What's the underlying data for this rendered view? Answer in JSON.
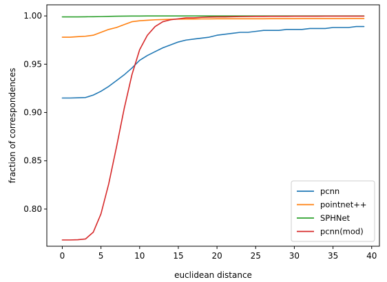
{
  "chart_data": {
    "type": "line",
    "title": "",
    "xlabel": "euclidean distance",
    "ylabel": "fraction of correspondences",
    "xlim": [
      -2,
      41
    ],
    "ylim": [
      0.7615,
      1.0115
    ],
    "xticks": [
      0,
      5,
      10,
      15,
      20,
      25,
      30,
      35,
      40
    ],
    "yticks": [
      0.8,
      0.85,
      0.9,
      0.95,
      1.0
    ],
    "grid": false,
    "legend_position": "lower right",
    "x": [
      0,
      1,
      2,
      3,
      4,
      5,
      6,
      7,
      8,
      9,
      10,
      11,
      12,
      13,
      14,
      15,
      16,
      17,
      18,
      19,
      20,
      21,
      22,
      23,
      24,
      25,
      26,
      27,
      28,
      29,
      30,
      31,
      32,
      33,
      34,
      35,
      36,
      37,
      38,
      39
    ],
    "series": [
      {
        "name": "pcnn",
        "color": "#1f77b4",
        "values": [
          0.915,
          0.915,
          0.9152,
          0.9155,
          0.918,
          0.922,
          0.927,
          0.933,
          0.939,
          0.946,
          0.954,
          0.959,
          0.963,
          0.967,
          0.97,
          0.973,
          0.975,
          0.976,
          0.977,
          0.978,
          0.98,
          0.981,
          0.982,
          0.983,
          0.983,
          0.984,
          0.985,
          0.985,
          0.985,
          0.986,
          0.986,
          0.986,
          0.987,
          0.987,
          0.987,
          0.988,
          0.988,
          0.988,
          0.989,
          0.989
        ]
      },
      {
        "name": "pointnet++",
        "color": "#ff7f0e",
        "values": [
          0.978,
          0.978,
          0.9785,
          0.979,
          0.98,
          0.983,
          0.986,
          0.988,
          0.991,
          0.994,
          0.995,
          0.9955,
          0.996,
          0.9962,
          0.9965,
          0.9967,
          0.9968,
          0.9968,
          0.9969,
          0.9969,
          0.997,
          0.997,
          0.997,
          0.997,
          0.997,
          0.997,
          0.997,
          0.9971,
          0.9971,
          0.9971,
          0.9971,
          0.9972,
          0.9972,
          0.9972,
          0.9972,
          0.9972,
          0.9972,
          0.9973,
          0.9973,
          0.9973
        ]
      },
      {
        "name": "SPHNet",
        "color": "#2ca02c",
        "values": [
          0.999,
          0.999,
          0.999,
          0.9991,
          0.9992,
          0.9993,
          0.9995,
          0.9997,
          0.9998,
          0.9999,
          0.9999,
          1.0,
          1.0,
          1.0,
          1.0,
          1.0,
          1.0,
          1.0,
          1.0,
          1.0,
          1.0,
          1.0,
          1.0,
          1.0,
          1.0,
          1.0,
          1.0,
          1.0,
          1.0,
          1.0,
          1.0,
          1.0,
          1.0,
          1.0,
          1.0,
          1.0,
          1.0,
          1.0,
          1.0,
          1.0
        ]
      },
      {
        "name": "pcnn(mod)",
        "color": "#d62728",
        "values": [
          0.768,
          0.768,
          0.7682,
          0.769,
          0.776,
          0.795,
          0.826,
          0.864,
          0.904,
          0.939,
          0.965,
          0.98,
          0.989,
          0.994,
          0.996,
          0.997,
          0.998,
          0.998,
          0.9985,
          0.9988,
          0.999,
          0.999,
          0.9992,
          0.9993,
          0.9994,
          0.9995,
          0.9995,
          0.9996,
          0.9996,
          0.9996,
          0.9997,
          0.9997,
          0.9997,
          0.9997,
          0.9998,
          0.9998,
          0.9998,
          0.9998,
          0.9998,
          0.9998
        ]
      }
    ]
  }
}
